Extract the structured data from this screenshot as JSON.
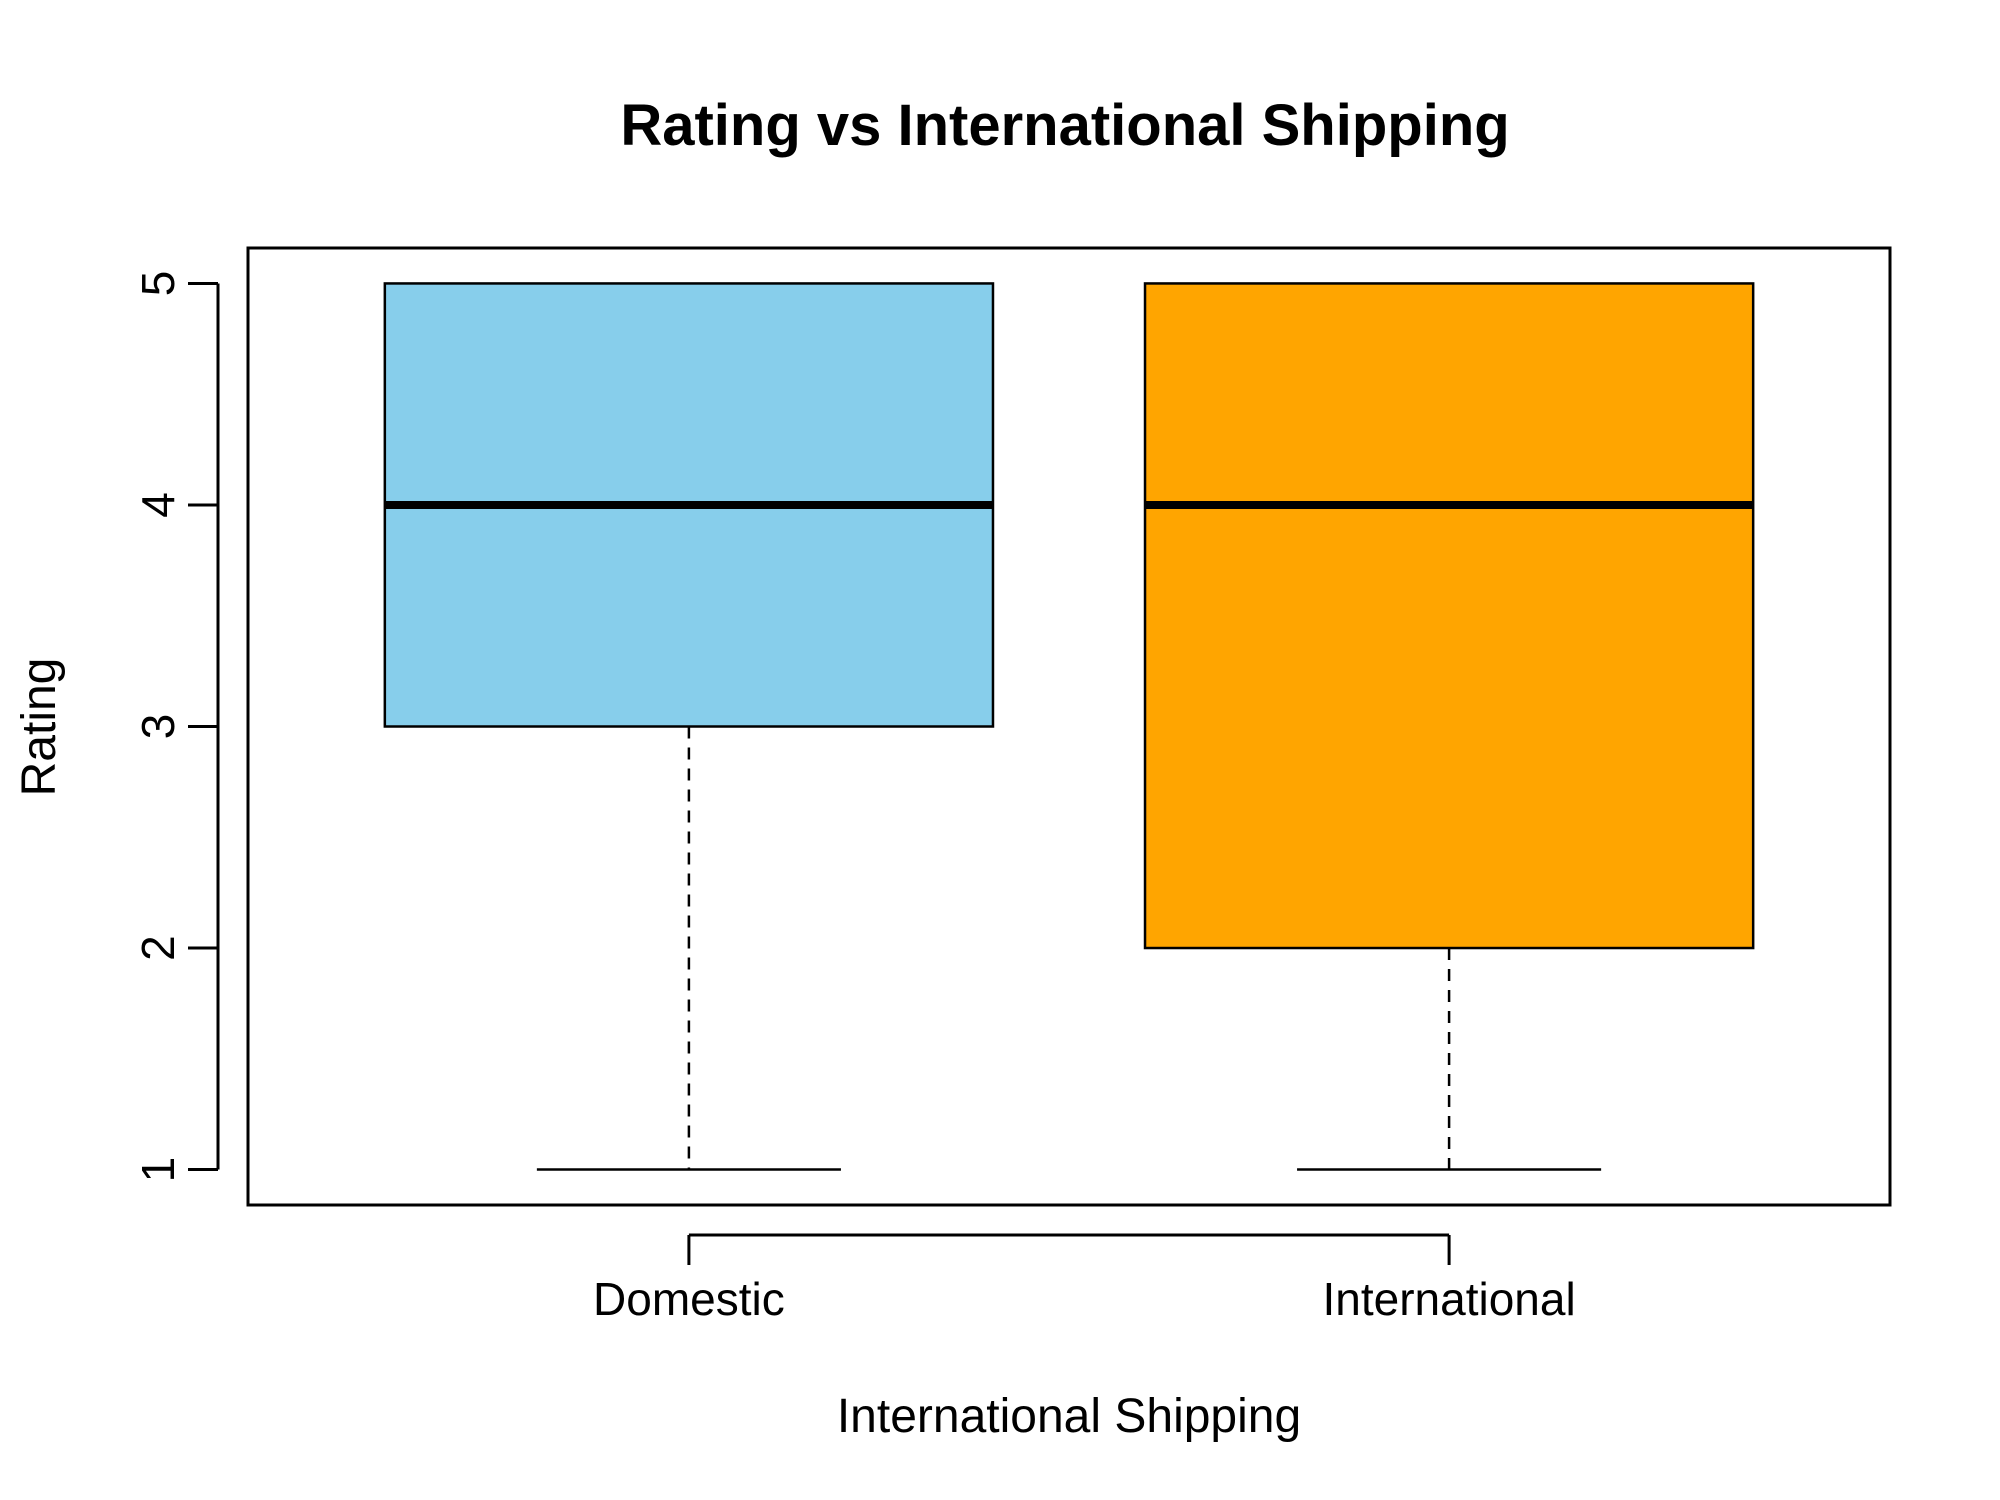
{
  "chart_data": {
    "type": "boxplot",
    "title": "Rating vs International Shipping",
    "xlabel": "International Shipping",
    "ylabel": "Rating",
    "ylim": [
      0.84,
      5.16
    ],
    "yticks": [
      "1",
      "2",
      "3",
      "4",
      "5"
    ],
    "categories": [
      "Domestic",
      "International"
    ],
    "boxes": [
      {
        "category": "Domestic",
        "whisker_low": 1,
        "q1": 3,
        "median": 4,
        "q3": 5,
        "whisker_high": 5,
        "color": "#87CEEB"
      },
      {
        "category": "International",
        "whisker_low": 1,
        "q1": 2,
        "median": 4,
        "q3": 5,
        "whisker_high": 5,
        "color": "#FFA500"
      }
    ],
    "grid": false,
    "legend": "none"
  }
}
